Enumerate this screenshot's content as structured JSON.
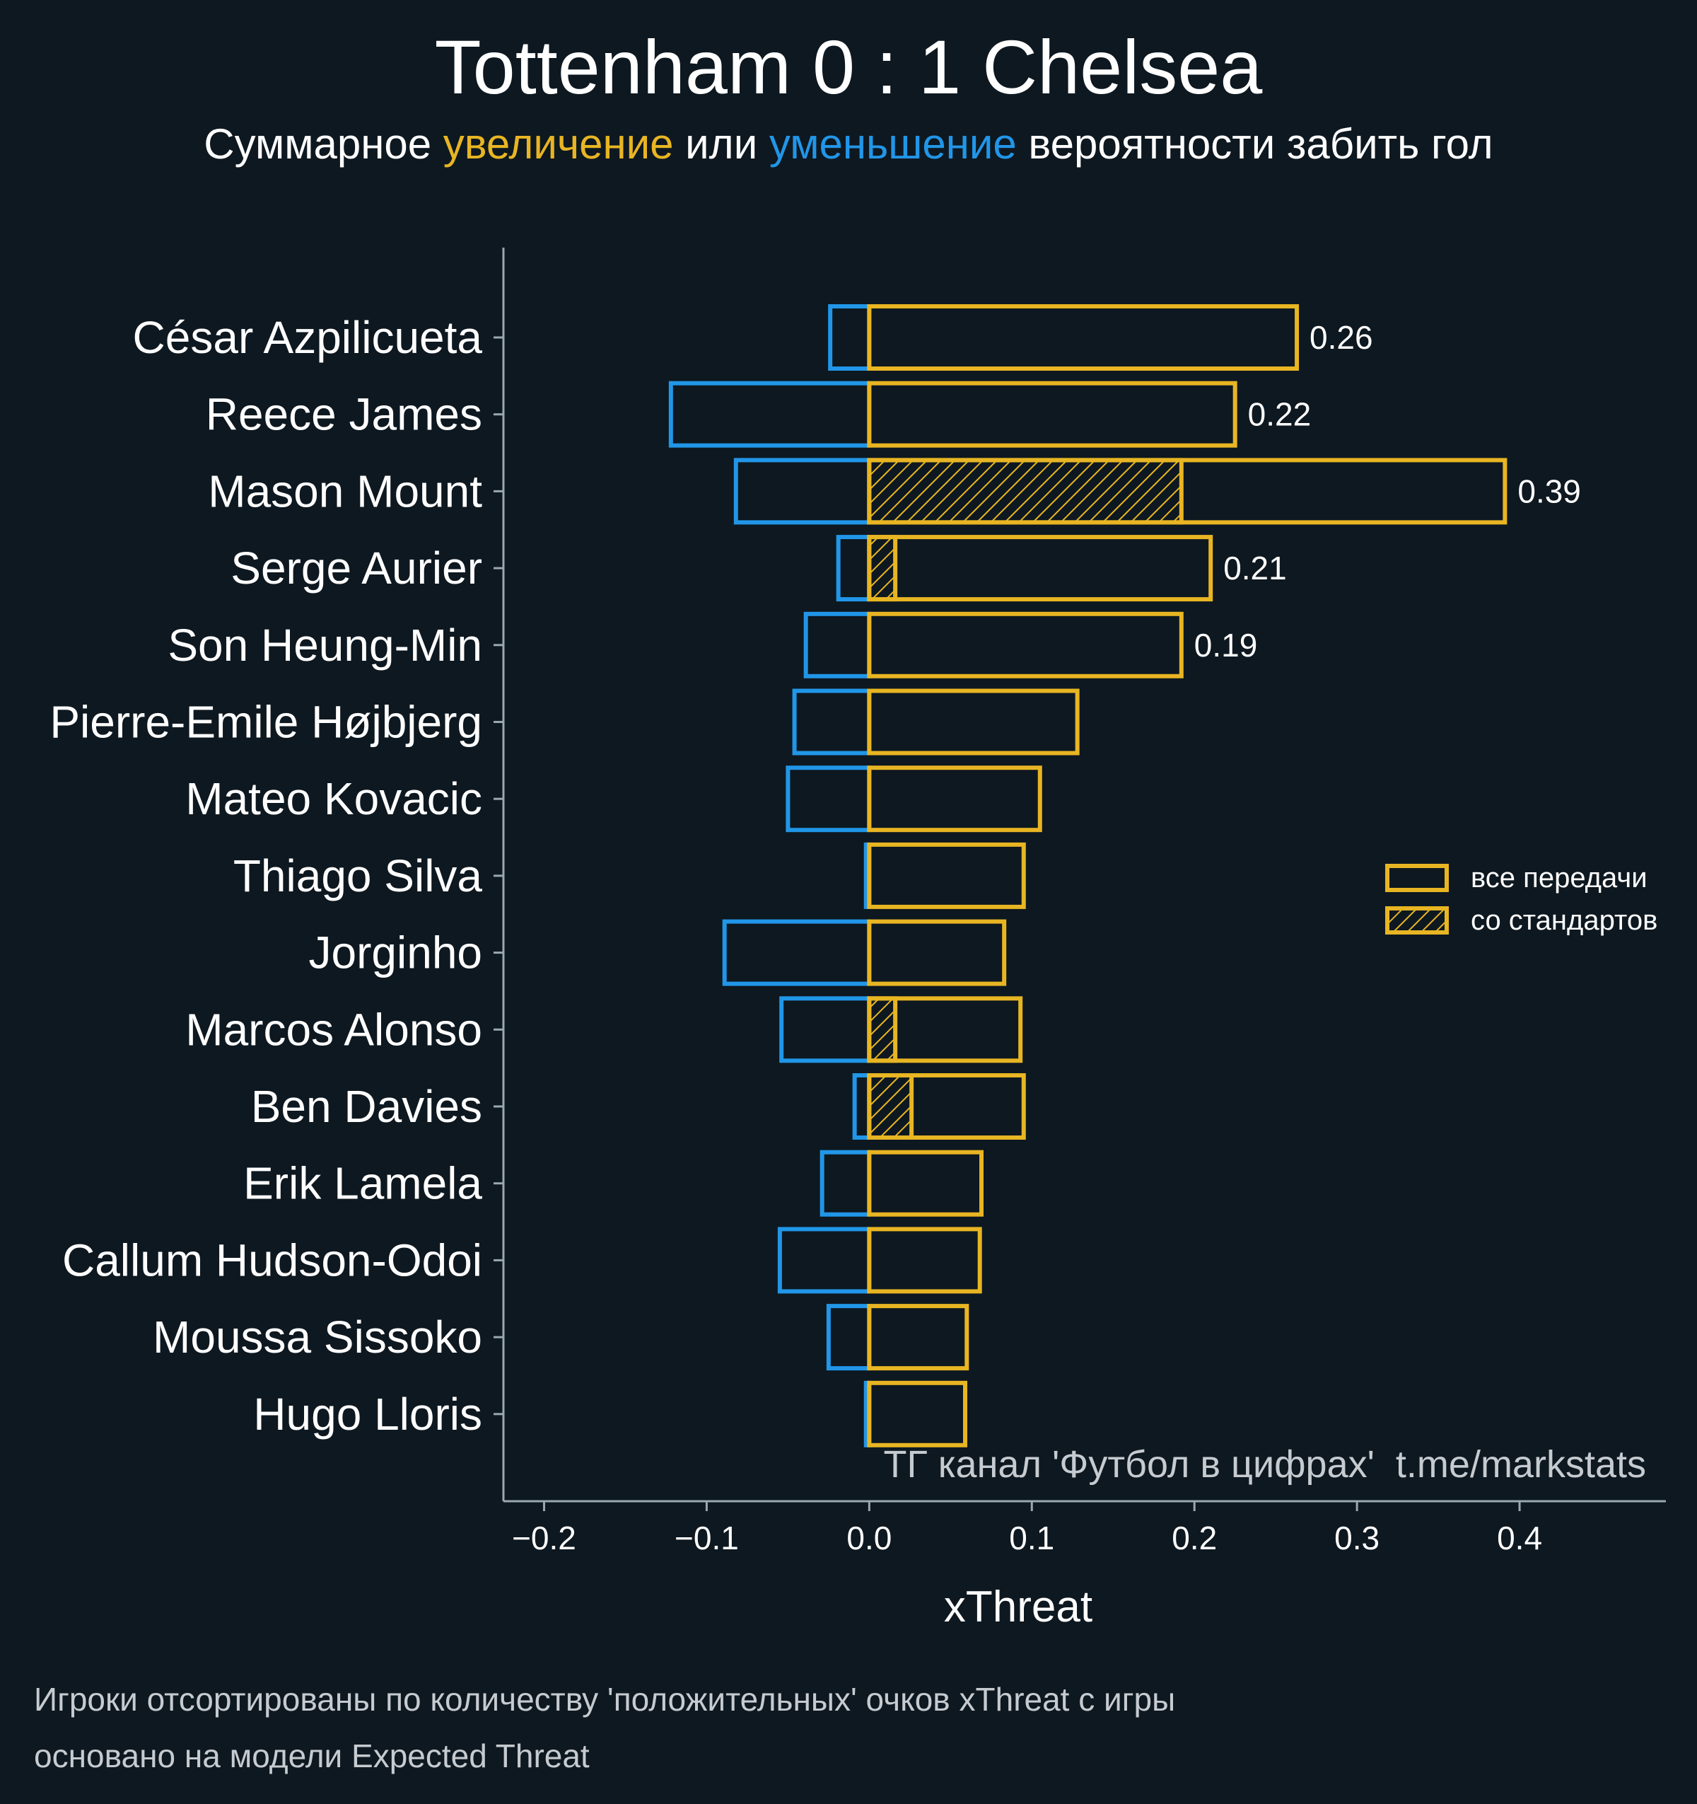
{
  "title": "Tottenham 0 : 1 Chelsea",
  "subtitle": {
    "part1": "Суммарное ",
    "increase": "увеличение",
    "part2": " или ",
    "decrease": "уменьшение",
    "part3": " вероятности забить гол"
  },
  "colors": {
    "background": "#0e1820",
    "positive": "#e8b523",
    "negative": "#2196e8",
    "axis": "#9aa8b0",
    "watermark": "#c6cbd0"
  },
  "watermark": "ТГ канал 'Футбол в цифрах'  t.me/markstats",
  "footnotes": [
    "Игроки отсортированы по количеству 'положительных' очков xThreat с игры",
    "основано на модели Expected Threat"
  ],
  "chart_data": {
    "type": "bar",
    "orientation": "horizontal",
    "xlabel": "xThreat",
    "xlim": [
      -0.225,
      0.49
    ],
    "xticks": [
      -0.2,
      -0.1,
      0.0,
      0.1,
      0.2,
      0.3,
      0.4
    ],
    "xtick_labels": [
      "−0.2",
      "−0.1",
      "0.0",
      "0.1",
      "0.2",
      "0.3",
      "0.4"
    ],
    "categories": [
      "César Azpilicueta",
      "Reece James",
      "Mason Mount",
      "Serge Aurier",
      "Son Heung-Min",
      "Pierre-Emile Højbjerg",
      "Mateo Kovacic",
      "Thiago Silva",
      "Jorginho",
      "Marcos Alonso",
      "Ben Davies",
      "Erik Lamela",
      "Callum Hudson-Odoi",
      "Moussa Sissoko",
      "Hugo Lloris"
    ],
    "series": [
      {
        "name": "все передачи",
        "values": [
          0.263,
          0.225,
          0.391,
          0.21,
          0.192,
          0.128,
          0.105,
          0.095,
          0.083,
          0.093,
          0.095,
          0.069,
          0.068,
          0.06,
          0.059
        ]
      },
      {
        "name": "со стандартов",
        "values": [
          0.0,
          0.0,
          0.192,
          0.016,
          0.0,
          0.0,
          0.0,
          0.0,
          0.0,
          0.016,
          0.026,
          0.0,
          0.0,
          0.0,
          0.0
        ]
      },
      {
        "name": "negative",
        "values": [
          -0.024,
          -0.122,
          -0.082,
          -0.019,
          -0.039,
          -0.046,
          -0.05,
          -0.002,
          -0.089,
          -0.054,
          -0.009,
          -0.029,
          -0.055,
          -0.025,
          -0.002
        ]
      }
    ],
    "value_labels": [
      "0.26",
      "0.22",
      "0.39",
      "0.21",
      "0.19",
      "",
      "",
      "",
      "",
      "",
      "",
      "",
      "",
      "",
      ""
    ],
    "legend": {
      "position": "center-right",
      "entries": [
        "все передачи",
        "со стандартов"
      ]
    }
  }
}
